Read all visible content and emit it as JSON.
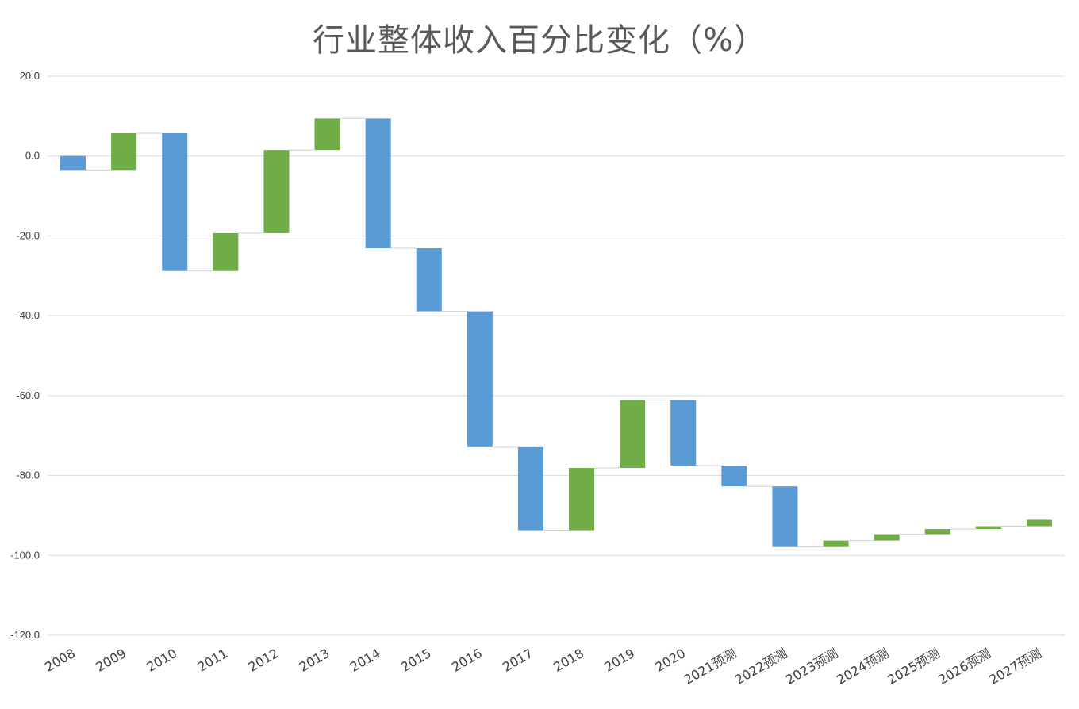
{
  "chart_data": {
    "type": "waterfall",
    "title": "行业整体收入百分比变化（%）",
    "xlabel": "",
    "ylabel": "",
    "ylim": [
      -120,
      20
    ],
    "yticks": [
      20,
      0,
      -20,
      -40,
      -60,
      -80,
      -100,
      -120
    ],
    "ytick_labels": [
      "20.0",
      "0.0",
      "-20.0",
      "-40.0",
      "-60.0",
      "-80.0",
      "-100.0",
      "-120.0"
    ],
    "grid": true,
    "legend": "none",
    "categories": [
      "2008",
      "2009",
      "2010",
      "2011",
      "2012",
      "2013",
      "2014",
      "2015",
      "2016",
      "2017",
      "2018",
      "2019",
      "2020",
      "2021预测",
      "2022预测",
      "2023预测",
      "2024预测",
      "2025预测",
      "2026预测",
      "2027预测"
    ],
    "changes": [
      -3.5,
      9.2,
      -34.5,
      9.5,
      20.8,
      7.9,
      -32.5,
      -15.8,
      -34.0,
      -20.8,
      15.6,
      17.0,
      -16.4,
      -5.2,
      -15.2,
      1.6,
      1.6,
      1.3,
      0.7,
      1.6
    ],
    "colors": {
      "increase": "#70AD47",
      "decrease": "#5B9BD5",
      "connector": "#D0D0D0",
      "grid": "#D9D9D9"
    }
  }
}
